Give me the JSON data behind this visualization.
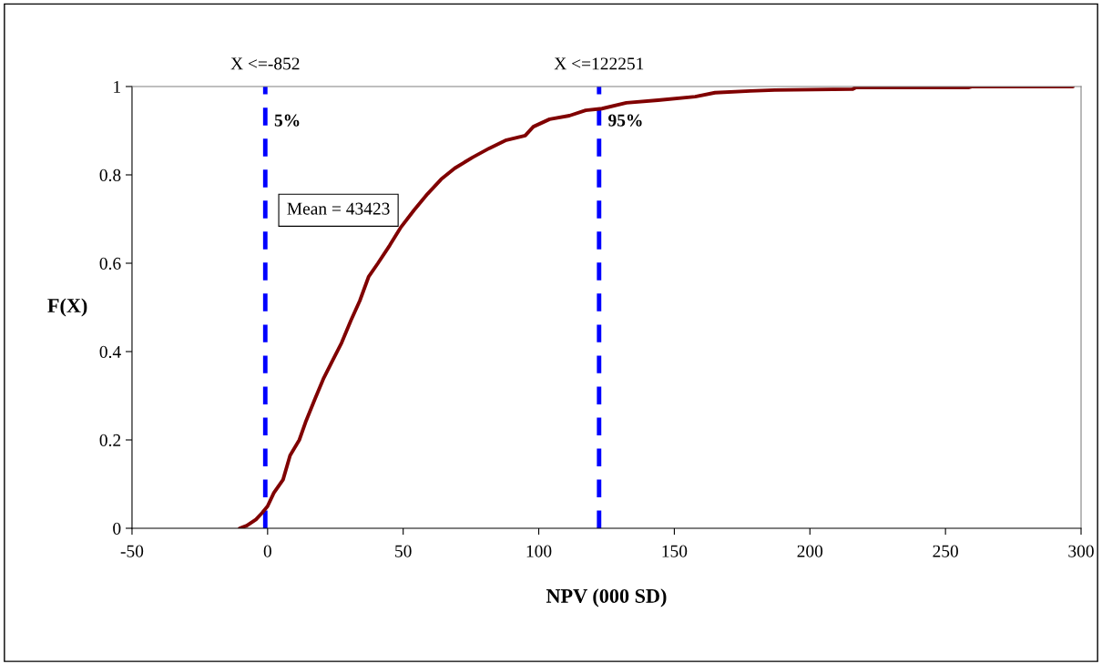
{
  "chart_data": {
    "type": "line",
    "xlabel": "NPV (000 SD)",
    "ylabel": "F(X)",
    "xlim": [
      -50,
      300
    ],
    "xticks": [
      -50,
      0,
      50,
      100,
      150,
      200,
      250,
      300
    ],
    "ylim": [
      0,
      1
    ],
    "yticks": [
      0,
      0.2,
      0.4,
      0.6,
      0.8,
      1
    ],
    "grid": false,
    "marker": "none",
    "line_style": "solid",
    "series": [
      {
        "color": "#800000",
        "x": [
          -10.3,
          -7.7,
          -4.3,
          -2,
          0,
          2.3,
          5.7,
          8.3,
          11.7,
          14,
          17.3,
          20.7,
          24,
          27.3,
          30.7,
          34,
          37.3,
          40.7,
          45,
          49,
          54,
          59,
          64,
          69,
          75.7,
          81.7,
          87.7,
          95,
          98,
          104,
          111.3,
          117.3,
          123.3,
          132.3,
          144,
          157.7,
          165,
          178,
          187,
          215.7,
          217,
          258.7,
          260,
          297
        ],
        "values": [
          0,
          0.006,
          0.02,
          0.035,
          0.05,
          0.08,
          0.11,
          0.165,
          0.2,
          0.24,
          0.29,
          0.34,
          0.38,
          0.42,
          0.47,
          0.515,
          0.57,
          0.6,
          0.64,
          0.68,
          0.72,
          0.757,
          0.79,
          0.815,
          0.84,
          0.86,
          0.878,
          0.889,
          0.909,
          0.926,
          0.934,
          0.946,
          0.95,
          0.963,
          0.969,
          0.977,
          0.986,
          0.99,
          0.992,
          0.994,
          0.998,
          0.998,
          1,
          1
        ]
      }
    ],
    "ref_lines": [
      {
        "axis": "x",
        "value": -0.852,
        "label": "X <=-852",
        "color": "#0000ff",
        "line_style": "dashed"
      },
      {
        "axis": "x",
        "value": 122.251,
        "label": "X <=122251",
        "color": "#0000ff",
        "line_style": "dashed"
      }
    ],
    "annotations": [
      {
        "text": "5%",
        "x": -0.852,
        "y": 0.92
      },
      {
        "text": "95%",
        "x": 122.251,
        "y": 0.92
      },
      "Mean = 43423"
    ]
  }
}
